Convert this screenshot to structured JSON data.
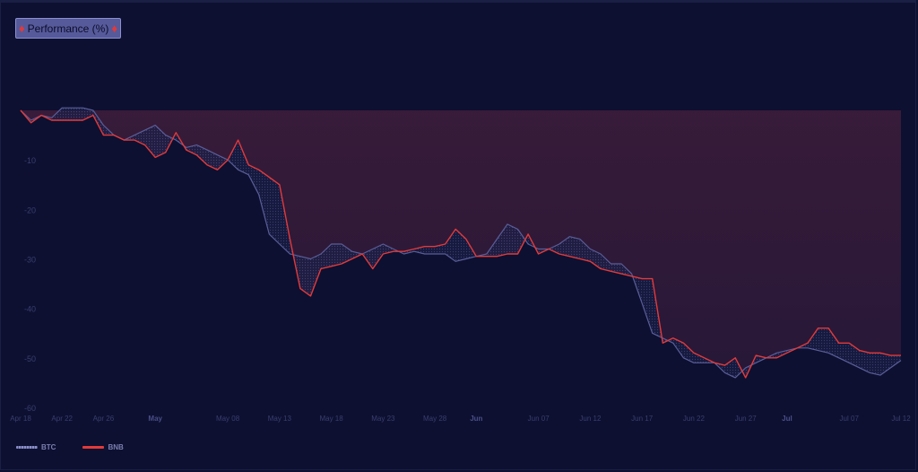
{
  "header": {
    "title": "Performance (%)",
    "left_arrow": "♦",
    "right_arrow": "♦"
  },
  "colors": {
    "background": "#0d1030",
    "btc": "#6a6ea8",
    "bnb": "#e23a3a",
    "loss_fill": "#2e1a3a",
    "grid_text": "#3a3e70"
  },
  "legend": [
    {
      "name": "BTC",
      "color": "#8b8fc8"
    },
    {
      "name": "BNB",
      "color": "#e23a3a"
    }
  ],
  "chart_data": {
    "type": "line",
    "title": "Performance (%)",
    "xlabel": "",
    "ylabel": "",
    "ylim": [
      -60,
      0
    ],
    "yticks": [
      -10,
      -20,
      -30,
      -40,
      -50,
      -60
    ],
    "xlim": [
      "2022-04-18",
      "2022-07-12"
    ],
    "xticks": [
      {
        "date": "2022-04-18",
        "label": "Apr 18",
        "bold": false
      },
      {
        "date": "2022-04-22",
        "label": "Apr 22",
        "bold": false
      },
      {
        "date": "2022-04-26",
        "label": "Apr 26",
        "bold": false
      },
      {
        "date": "2022-05-01",
        "label": "May",
        "bold": true
      },
      {
        "date": "2022-05-08",
        "label": "May 08",
        "bold": false
      },
      {
        "date": "2022-05-13",
        "label": "May 13",
        "bold": false
      },
      {
        "date": "2022-05-18",
        "label": "May 18",
        "bold": false
      },
      {
        "date": "2022-05-23",
        "label": "May 23",
        "bold": false
      },
      {
        "date": "2022-05-28",
        "label": "May 28",
        "bold": false
      },
      {
        "date": "2022-06-01",
        "label": "Jun",
        "bold": true
      },
      {
        "date": "2022-06-07",
        "label": "Jun 07",
        "bold": false
      },
      {
        "date": "2022-06-12",
        "label": "Jun 12",
        "bold": false
      },
      {
        "date": "2022-06-17",
        "label": "Jun 17",
        "bold": false
      },
      {
        "date": "2022-06-22",
        "label": "Jun 22",
        "bold": false
      },
      {
        "date": "2022-06-27",
        "label": "Jun 27",
        "bold": false
      },
      {
        "date": "2022-07-01",
        "label": "Jul",
        "bold": true
      },
      {
        "date": "2022-07-07",
        "label": "Jul 07",
        "bold": false
      },
      {
        "date": "2022-07-12",
        "label": "Jul 12",
        "bold": false
      }
    ],
    "grid": false,
    "legend_position": "bottom-left",
    "series": [
      {
        "name": "BTC",
        "color": "#6a6ea8",
        "points": [
          [
            "2022-04-18",
            0
          ],
          [
            "2022-04-19",
            -2
          ],
          [
            "2022-04-20",
            -1
          ],
          [
            "2022-04-21",
            -1.5
          ],
          [
            "2022-04-22",
            0.5
          ],
          [
            "2022-04-23",
            0.5
          ],
          [
            "2022-04-24",
            0.5
          ],
          [
            "2022-04-25",
            0
          ],
          [
            "2022-04-26",
            -3
          ],
          [
            "2022-04-27",
            -5
          ],
          [
            "2022-04-28",
            -6
          ],
          [
            "2022-04-29",
            -5
          ],
          [
            "2022-04-30",
            -4
          ],
          [
            "2022-05-01",
            -3
          ],
          [
            "2022-05-02",
            -5
          ],
          [
            "2022-05-03",
            -6
          ],
          [
            "2022-05-04",
            -7.5
          ],
          [
            "2022-05-05",
            -7
          ],
          [
            "2022-05-06",
            -8
          ],
          [
            "2022-05-07",
            -9
          ],
          [
            "2022-05-08",
            -10
          ],
          [
            "2022-05-09",
            -12
          ],
          [
            "2022-05-10",
            -13
          ],
          [
            "2022-05-11",
            -17
          ],
          [
            "2022-05-12",
            -25
          ],
          [
            "2022-05-13",
            -27
          ],
          [
            "2022-05-14",
            -29
          ],
          [
            "2022-05-15",
            -29.5
          ],
          [
            "2022-05-16",
            -30
          ],
          [
            "2022-05-17",
            -29
          ],
          [
            "2022-05-18",
            -27
          ],
          [
            "2022-05-19",
            -27
          ],
          [
            "2022-05-20",
            -28.5
          ],
          [
            "2022-05-21",
            -29
          ],
          [
            "2022-05-22",
            -28
          ],
          [
            "2022-05-23",
            -27
          ],
          [
            "2022-05-24",
            -28
          ],
          [
            "2022-05-25",
            -29
          ],
          [
            "2022-05-26",
            -28.5
          ],
          [
            "2022-05-27",
            -29
          ],
          [
            "2022-05-28",
            -29
          ],
          [
            "2022-05-29",
            -29
          ],
          [
            "2022-05-30",
            -30.5
          ],
          [
            "2022-05-31",
            -30
          ],
          [
            "2022-06-01",
            -29.5
          ],
          [
            "2022-06-02",
            -29
          ],
          [
            "2022-06-03",
            -26
          ],
          [
            "2022-06-04",
            -23
          ],
          [
            "2022-06-05",
            -24
          ],
          [
            "2022-06-06",
            -27
          ],
          [
            "2022-06-07",
            -28
          ],
          [
            "2022-06-08",
            -28
          ],
          [
            "2022-06-09",
            -27
          ],
          [
            "2022-06-10",
            -25.5
          ],
          [
            "2022-06-11",
            -26
          ],
          [
            "2022-06-12",
            -28
          ],
          [
            "2022-06-13",
            -29
          ],
          [
            "2022-06-14",
            -31
          ],
          [
            "2022-06-15",
            -31
          ],
          [
            "2022-06-16",
            -33
          ],
          [
            "2022-06-17",
            -39
          ],
          [
            "2022-06-18",
            -45
          ],
          [
            "2022-06-19",
            -46
          ],
          [
            "2022-06-20",
            -47
          ],
          [
            "2022-06-21",
            -50
          ],
          [
            "2022-06-22",
            -51
          ],
          [
            "2022-06-23",
            -51
          ],
          [
            "2022-06-24",
            -51
          ],
          [
            "2022-06-25",
            -53
          ],
          [
            "2022-06-26",
            -54
          ],
          [
            "2022-06-27",
            -52
          ],
          [
            "2022-06-28",
            -51
          ],
          [
            "2022-06-29",
            -50
          ],
          [
            "2022-06-30",
            -49
          ],
          [
            "2022-07-01",
            -48.5
          ],
          [
            "2022-07-02",
            -48
          ],
          [
            "2022-07-03",
            -48
          ],
          [
            "2022-07-04",
            -48.5
          ],
          [
            "2022-07-05",
            -49
          ],
          [
            "2022-07-06",
            -50
          ],
          [
            "2022-07-07",
            -51
          ],
          [
            "2022-07-08",
            -52
          ],
          [
            "2022-07-09",
            -53
          ],
          [
            "2022-07-10",
            -53.5
          ],
          [
            "2022-07-11",
            -52
          ],
          [
            "2022-07-12",
            -50.5
          ]
        ]
      },
      {
        "name": "BNB",
        "color": "#e23a3a",
        "points": [
          [
            "2022-04-18",
            0
          ],
          [
            "2022-04-19",
            -2.5
          ],
          [
            "2022-04-20",
            -1
          ],
          [
            "2022-04-21",
            -2
          ],
          [
            "2022-04-22",
            -2
          ],
          [
            "2022-04-23",
            -2
          ],
          [
            "2022-04-24",
            -2
          ],
          [
            "2022-04-25",
            -1
          ],
          [
            "2022-04-26",
            -5
          ],
          [
            "2022-04-27",
            -5
          ],
          [
            "2022-04-28",
            -6
          ],
          [
            "2022-04-29",
            -6
          ],
          [
            "2022-04-30",
            -7
          ],
          [
            "2022-05-01",
            -9.5
          ],
          [
            "2022-05-02",
            -8.5
          ],
          [
            "2022-05-03",
            -4.5
          ],
          [
            "2022-05-04",
            -8
          ],
          [
            "2022-05-05",
            -9
          ],
          [
            "2022-05-06",
            -11
          ],
          [
            "2022-05-07",
            -12
          ],
          [
            "2022-05-08",
            -10
          ],
          [
            "2022-05-09",
            -6
          ],
          [
            "2022-05-10",
            -11
          ],
          [
            "2022-05-11",
            -12
          ],
          [
            "2022-05-12",
            -13.5
          ],
          [
            "2022-05-13",
            -15
          ],
          [
            "2022-05-14",
            -26
          ],
          [
            "2022-05-15",
            -36
          ],
          [
            "2022-05-16",
            -37.5
          ],
          [
            "2022-05-17",
            -32
          ],
          [
            "2022-05-18",
            -31.5
          ],
          [
            "2022-05-19",
            -31
          ],
          [
            "2022-05-20",
            -30
          ],
          [
            "2022-05-21",
            -29
          ],
          [
            "2022-05-22",
            -32
          ],
          [
            "2022-05-23",
            -29
          ],
          [
            "2022-05-24",
            -28.5
          ],
          [
            "2022-05-25",
            -28.5
          ],
          [
            "2022-05-26",
            -28
          ],
          [
            "2022-05-27",
            -27.5
          ],
          [
            "2022-05-28",
            -27.5
          ],
          [
            "2022-05-29",
            -27
          ],
          [
            "2022-05-30",
            -24
          ],
          [
            "2022-05-31",
            -26
          ],
          [
            "2022-06-01",
            -29.5
          ],
          [
            "2022-06-02",
            -29.5
          ],
          [
            "2022-06-03",
            -29.5
          ],
          [
            "2022-06-04",
            -29
          ],
          [
            "2022-06-05",
            -29
          ],
          [
            "2022-06-06",
            -25
          ],
          [
            "2022-06-07",
            -29
          ],
          [
            "2022-06-08",
            -28
          ],
          [
            "2022-06-09",
            -29
          ],
          [
            "2022-06-10",
            -29.5
          ],
          [
            "2022-06-11",
            -30
          ],
          [
            "2022-06-12",
            -30.5
          ],
          [
            "2022-06-13",
            -32
          ],
          [
            "2022-06-14",
            -32.5
          ],
          [
            "2022-06-15",
            -33
          ],
          [
            "2022-06-16",
            -33.5
          ],
          [
            "2022-06-17",
            -34
          ],
          [
            "2022-06-18",
            -34
          ],
          [
            "2022-06-19",
            -47
          ],
          [
            "2022-06-20",
            -46
          ],
          [
            "2022-06-21",
            -47
          ],
          [
            "2022-06-22",
            -49
          ],
          [
            "2022-06-23",
            -50
          ],
          [
            "2022-06-24",
            -51
          ],
          [
            "2022-06-25",
            -51.5
          ],
          [
            "2022-06-26",
            -50
          ],
          [
            "2022-06-27",
            -54
          ],
          [
            "2022-06-28",
            -49.5
          ],
          [
            "2022-06-29",
            -50
          ],
          [
            "2022-06-30",
            -50
          ],
          [
            "2022-07-01",
            -49
          ],
          [
            "2022-07-02",
            -48
          ],
          [
            "2022-07-03",
            -47
          ],
          [
            "2022-07-04",
            -44
          ],
          [
            "2022-07-05",
            -44
          ],
          [
            "2022-07-06",
            -47
          ],
          [
            "2022-07-07",
            -47
          ],
          [
            "2022-07-08",
            -48.5
          ],
          [
            "2022-07-09",
            -49
          ],
          [
            "2022-07-10",
            -49
          ],
          [
            "2022-07-11",
            -49.5
          ],
          [
            "2022-07-12",
            -49.5
          ]
        ]
      }
    ]
  }
}
